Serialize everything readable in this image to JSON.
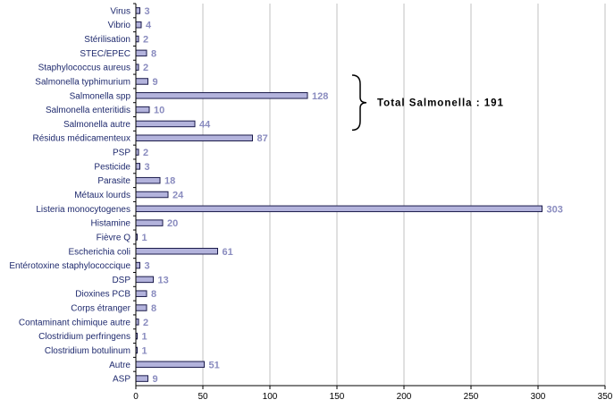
{
  "chart_data": {
    "type": "bar",
    "orientation": "horizontal",
    "categories": [
      "Virus",
      "Vibrio",
      "Stérilisation",
      "STEC/EPEC",
      "Staphylococcus aureus",
      "Salmonella typhimurium",
      "Salmonella spp",
      "Salmonella enteritidis",
      "Salmonella autre",
      "Résidus médicamenteux",
      "PSP",
      "Pesticide",
      "Parasite",
      "Métaux lourds",
      "Listeria monocytogenes",
      "Histamine",
      "Fièvre Q",
      "Escherichia coli",
      "Entérotoxine staphylococcique",
      "DSP",
      "Dioxines PCB",
      "Corps étranger",
      "Contaminant chimique autre",
      "Clostridium perfringens",
      "Clostridium botulinum",
      "Autre",
      "ASP"
    ],
    "values": [
      3,
      4,
      2,
      8,
      2,
      9,
      128,
      10,
      44,
      87,
      2,
      3,
      18,
      24,
      303,
      20,
      1,
      61,
      3,
      13,
      8,
      8,
      2,
      1,
      1,
      51,
      9
    ],
    "xlim": [
      0,
      350
    ],
    "xticks": [
      0,
      50,
      100,
      150,
      200,
      250,
      300,
      350
    ],
    "grid": "vertical",
    "title": "",
    "xlabel": "",
    "ylabel": "",
    "annotation": {
      "text": "Total Salmonella : 191",
      "brace_from": "Salmonella typhimurium",
      "brace_to": "Salmonella autre"
    },
    "colors": {
      "bar_fill": "#b3b3dc",
      "bar_stroke": "#1a1a4a",
      "value_label": "#8a8cbf",
      "category_label": "#1f2a6e",
      "grid": "#c0c0c0",
      "axis": "#000000"
    }
  }
}
